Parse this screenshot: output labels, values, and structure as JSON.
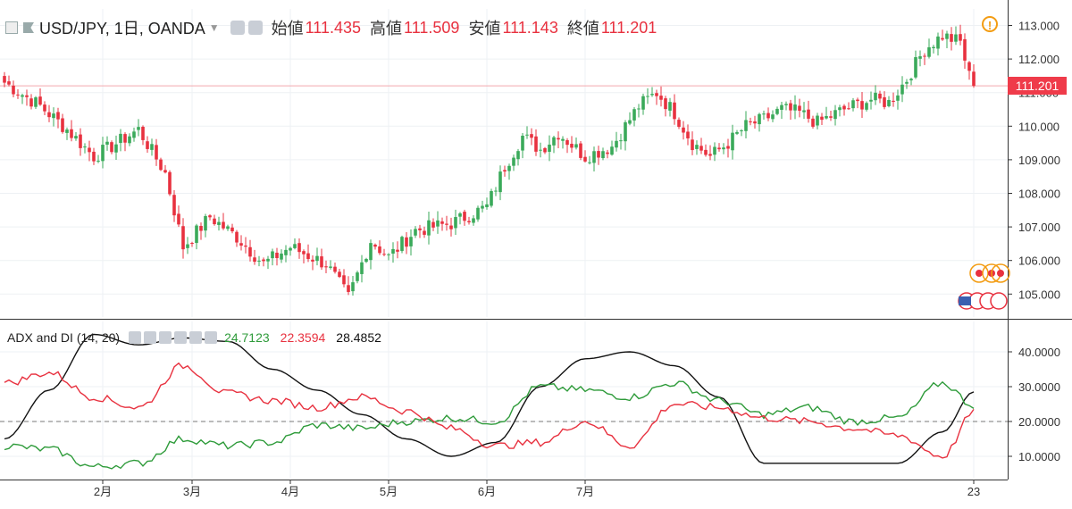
{
  "header": {
    "symbol": "USD/JPY, 1日, OANDA",
    "open_label": "始値",
    "open_value": "111.435",
    "high_label": "高値",
    "high_value": "111.509",
    "low_label": "安値",
    "low_value": "111.143",
    "close_label": "終値",
    "close_value": "111.201"
  },
  "indicator": {
    "name": "ADX and DI (14, 20)",
    "di_plus": "24.7123",
    "di_minus": "22.3594",
    "adx": "28.4852"
  },
  "current_price_label": "111.201",
  "alert_icon": "!",
  "colors": {
    "up": "#3aaa5a",
    "down": "#e8313f",
    "di_plus": "#2e9b3a",
    "di_minus": "#e8313f",
    "adx": "#111111",
    "price_line": "#f3a9ae"
  },
  "chart_data": [
    {
      "type": "candlestick",
      "title": "USD/JPY, 1日, OANDA",
      "x_tick_labels": [
        "2月",
        "3月",
        "4月",
        "5月",
        "6月",
        "7月",
        "23"
      ],
      "y_tick_labels": [
        "113.000",
        "112.000",
        "111.000",
        "110.000",
        "109.000",
        "108.000",
        "107.000",
        "106.000",
        "105.000"
      ],
      "ylim": [
        104.0,
        113.4
      ],
      "last_close": 111.201,
      "close_anchors": [
        {
          "x": 0,
          "y": 111.3
        },
        {
          "x": 8,
          "y": 110.6
        },
        {
          "x": 14,
          "y": 109.9
        },
        {
          "x": 20,
          "y": 109.1
        },
        {
          "x": 24,
          "y": 109.4
        },
        {
          "x": 30,
          "y": 109.9
        },
        {
          "x": 36,
          "y": 108.6
        },
        {
          "x": 40,
          "y": 106.4
        },
        {
          "x": 46,
          "y": 107.3
        },
        {
          "x": 52,
          "y": 106.7
        },
        {
          "x": 58,
          "y": 105.9
        },
        {
          "x": 64,
          "y": 106.4
        },
        {
          "x": 72,
          "y": 105.9
        },
        {
          "x": 77,
          "y": 104.9
        },
        {
          "x": 82,
          "y": 106.6
        },
        {
          "x": 86,
          "y": 106.1
        },
        {
          "x": 92,
          "y": 106.9
        },
        {
          "x": 100,
          "y": 107.1
        },
        {
          "x": 108,
          "y": 107.6
        },
        {
          "x": 112,
          "y": 108.8
        },
        {
          "x": 116,
          "y": 109.7
        },
        {
          "x": 120,
          "y": 109.3
        },
        {
          "x": 124,
          "y": 109.8
        },
        {
          "x": 130,
          "y": 109.1
        },
        {
          "x": 136,
          "y": 109.4
        },
        {
          "x": 142,
          "y": 110.6
        },
        {
          "x": 146,
          "y": 111.0
        },
        {
          "x": 150,
          "y": 110.4
        },
        {
          "x": 154,
          "y": 109.5
        },
        {
          "x": 158,
          "y": 109.1
        },
        {
          "x": 162,
          "y": 109.5
        },
        {
          "x": 166,
          "y": 110.0
        },
        {
          "x": 170,
          "y": 110.2
        },
        {
          "x": 174,
          "y": 110.5
        },
        {
          "x": 178,
          "y": 110.4
        },
        {
          "x": 182,
          "y": 110.1
        },
        {
          "x": 188,
          "y": 110.5
        },
        {
          "x": 194,
          "y": 110.8
        },
        {
          "x": 198,
          "y": 110.7
        },
        {
          "x": 202,
          "y": 111.4
        },
        {
          "x": 206,
          "y": 112.3
        },
        {
          "x": 210,
          "y": 112.7
        },
        {
          "x": 214,
          "y": 112.5
        },
        {
          "x": 216,
          "y": 111.5
        },
        {
          "x": 217,
          "y": 111.2
        }
      ]
    },
    {
      "type": "line",
      "title": "ADX and DI (14, 20)",
      "y_tick_labels": [
        "40.0000",
        "30.0000",
        "20.0000",
        "10.0000"
      ],
      "ylim": [
        3,
        45
      ],
      "reference_line": 20,
      "x": [
        0,
        10,
        20,
        30,
        40,
        50,
        60,
        70,
        80,
        90,
        100,
        110,
        120,
        130,
        140,
        150,
        160,
        170,
        180,
        190,
        200,
        210,
        217
      ],
      "series": [
        {
          "values": [
            15,
            29,
            45,
            42,
            44,
            43,
            35,
            29,
            22,
            15,
            10,
            14,
            30,
            38,
            40,
            36,
            27,
            8,
            8,
            8,
            8,
            17,
            28.5
          ]
        },
        {
          "values": [
            13,
            12,
            7,
            8,
            15,
            13,
            14,
            19,
            18,
            20,
            21,
            20,
            30,
            29,
            27,
            31,
            26,
            22,
            24,
            20,
            21,
            31,
            24.7
          ]
        },
        {
          "values": [
            31,
            34,
            27,
            24,
            36,
            28,
            26,
            24,
            27,
            23,
            18,
            13,
            14,
            20,
            13,
            25,
            24,
            21,
            20,
            18,
            16,
            10,
            22.4
          ]
        }
      ]
    }
  ]
}
